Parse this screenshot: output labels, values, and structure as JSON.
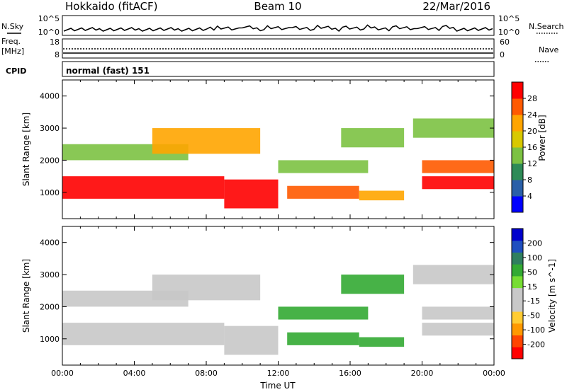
{
  "header": {
    "station": "Hokkaido (fitACF)",
    "beam": "Beam 10",
    "date": "22/Mar/2016"
  },
  "status_panel": {
    "left_label": "N.Sky",
    "right_label": "N.Search",
    "left_ticks": [
      "10^5",
      "10^0"
    ],
    "right_ticks": [
      "10^5",
      "10^0"
    ]
  },
  "freq_panel": {
    "left_label_1": "Freq.",
    "left_label_2": "[MHz]",
    "right_label": "Nave",
    "left_ticks": [
      "18",
      "8"
    ],
    "right_ticks": [
      "60",
      "0"
    ]
  },
  "cpid_panel": {
    "label": "CPID",
    "text": "normal (fast) 151"
  },
  "colors": {
    "power_scale": [
      "#0000ff",
      "#2a5fa8",
      "#2e8b57",
      "#7cc242",
      "#d8c800",
      "#ffa500",
      "#ff5a00",
      "#ff0000"
    ],
    "velocity_scale": [
      "#ff0000",
      "#ff4500",
      "#ff9900",
      "#ffcc33",
      "#c8c8c8",
      "#c8c8c8",
      "#77dd33",
      "#33aa33",
      "#2f7f5f",
      "#1f4fbf",
      "#0000cc"
    ]
  },
  "chart_data": [
    {
      "type": "heatmap",
      "name": "power",
      "xlabel": "",
      "ylabel": "Slant Range [km]",
      "xlim_hours": [
        0,
        24
      ],
      "ylim_km": [
        180,
        4500
      ],
      "yticks": [
        "1000",
        "2000",
        "3000",
        "4000"
      ],
      "colorbar": {
        "label": "Power [dB]",
        "ticks": [
          "4",
          "8",
          "12",
          "16",
          "20",
          "24",
          "28"
        ],
        "range": [
          0,
          32
        ]
      },
      "regions": [
        {
          "t0": 0.0,
          "t1": 9.0,
          "r0": 800,
          "r1": 1500,
          "level": 7
        },
        {
          "t0": 9.0,
          "t1": 12.0,
          "r0": 500,
          "r1": 1400,
          "level": 7
        },
        {
          "t0": 12.5,
          "t1": 16.5,
          "r0": 800,
          "r1": 1200,
          "level": 6
        },
        {
          "t0": 16.5,
          "t1": 19.0,
          "r0": 750,
          "r1": 1050,
          "level": 5
        },
        {
          "t0": 20.0,
          "t1": 24.0,
          "r0": 1100,
          "r1": 1500,
          "level": 7
        },
        {
          "t0": 20.0,
          "t1": 24.0,
          "r0": 1600,
          "r1": 2000,
          "level": 6
        },
        {
          "t0": 0.0,
          "t1": 7.0,
          "r0": 2000,
          "r1": 2500,
          "level": 3
        },
        {
          "t0": 5.0,
          "t1": 11.0,
          "r0": 2200,
          "r1": 3000,
          "level": 5
        },
        {
          "t0": 12.0,
          "t1": 17.0,
          "r0": 1600,
          "r1": 2000,
          "level": 3
        },
        {
          "t0": 15.5,
          "t1": 19.0,
          "r0": 2400,
          "r1": 3000,
          "level": 3
        },
        {
          "t0": 19.5,
          "t1": 24.0,
          "r0": 2700,
          "r1": 3300,
          "level": 3
        }
      ]
    },
    {
      "type": "heatmap",
      "name": "velocity",
      "xlabel": "Time UT",
      "ylabel": "Slant Range [km]",
      "xlim_hours": [
        0,
        24
      ],
      "ylim_km": [
        180,
        4500
      ],
      "xticks": [
        "00:00",
        "04:00",
        "08:00",
        "12:00",
        "16:00",
        "20:00",
        "00:00"
      ],
      "yticks": [
        "1000",
        "2000",
        "3000",
        "4000"
      ],
      "colorbar": {
        "label": "Velocity [m s^-1]",
        "ticks": [
          "-200",
          "-100",
          "-50",
          "-15",
          "15",
          "50",
          "100",
          "200"
        ],
        "range": [
          -250,
          250
        ]
      },
      "regions": [
        {
          "t0": 0.0,
          "t1": 9.0,
          "r0": 800,
          "r1": 1500,
          "vel": 0
        },
        {
          "t0": 9.0,
          "t1": 12.0,
          "r0": 500,
          "r1": 1400,
          "vel": 0
        },
        {
          "t0": 12.5,
          "t1": 16.5,
          "r0": 800,
          "r1": 1200,
          "vel": 40
        },
        {
          "t0": 16.5,
          "t1": 19.0,
          "r0": 750,
          "r1": 1050,
          "vel": 40
        },
        {
          "t0": 12.0,
          "t1": 17.0,
          "r0": 1600,
          "r1": 2000,
          "vel": 40
        },
        {
          "t0": 20.0,
          "t1": 24.0,
          "r0": 1100,
          "r1": 1500,
          "vel": 0
        },
        {
          "t0": 20.0,
          "t1": 24.0,
          "r0": 1600,
          "r1": 2000,
          "vel": 0
        },
        {
          "t0": 0.0,
          "t1": 7.0,
          "r0": 2000,
          "r1": 2500,
          "vel": 0
        },
        {
          "t0": 5.0,
          "t1": 11.0,
          "r0": 2200,
          "r1": 3000,
          "vel": 0
        },
        {
          "t0": 15.5,
          "t1": 19.0,
          "r0": 2400,
          "r1": 3000,
          "vel": 40
        },
        {
          "t0": 19.5,
          "t1": 24.0,
          "r0": 2700,
          "r1": 3300,
          "vel": 0
        }
      ]
    }
  ]
}
